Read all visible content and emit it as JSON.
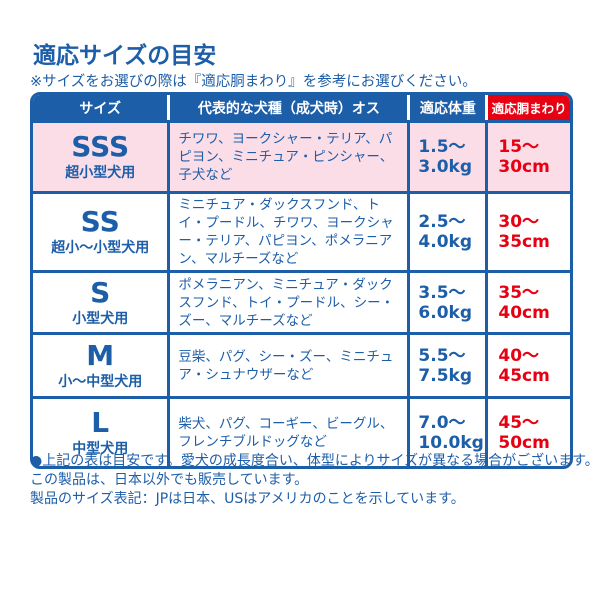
{
  "title": "適応サイズの目安",
  "note": "※サイズをお選びの際は『適応胴まわり』を参考にお選びください。",
  "table": {
    "headers": [
      "サイズ",
      "代表的な犬種（成犬時）オス",
      "適応体重",
      "適応胴まわり"
    ],
    "rows": [
      {
        "code": "SSS",
        "use": "超小型犬用",
        "breeds": "チワワ、ヨークシャー・テリア、パピヨン、ミニチュア・ピンシャー、子犬など",
        "weight_from": "1.5～",
        "weight_to": "3.0kg",
        "girth_from": "15～",
        "girth_to": "30cm"
      },
      {
        "code": "SS",
        "use": "超小～小型犬用",
        "breeds": "ミニチュア・ダックスフンド、トイ・プードル、チワワ、ヨークシャー・テリア、パピヨン、ポメラニアン、マルチーズなど",
        "weight_from": "2.5～",
        "weight_to": "4.0kg",
        "girth_from": "30～",
        "girth_to": "35cm"
      },
      {
        "code": "S",
        "use": "小型犬用",
        "breeds": "ポメラニアン、ミニチュア・ダックスフンド、トイ・プードル、シー・ズー、マルチーズなど",
        "weight_from": "3.5～",
        "weight_to": "6.0kg",
        "girth_from": "35～",
        "girth_to": "40cm"
      },
      {
        "code": "M",
        "use": "小～中型犬用",
        "breeds": "豆柴、パグ、シー・ズー、ミニチュア・シュナウザーなど",
        "weight_from": "5.5～",
        "weight_to": "7.5kg",
        "girth_from": "40～",
        "girth_to": "45cm"
      },
      {
        "code": "L",
        "use": "中型犬用",
        "breeds": "柴犬、パグ、コーギー、ビーグル、フレンチブルドッグなど",
        "weight_from": "7.0～",
        "weight_to": "10.0kg",
        "girth_from": "45～",
        "girth_to": "50cm"
      }
    ]
  },
  "footer": [
    "上記の表は目安です。愛犬の成長度合い、体型によりサイズが異なる場合がございます。",
    "この製品は、日本以外でも販売しています。",
    "製品のサイズ表記：JPは日本、USはアメリカのことを示しています。"
  ],
  "colors": {
    "blue": "#1d5ea8",
    "red": "#e60012",
    "pink": "#fbdde8"
  }
}
